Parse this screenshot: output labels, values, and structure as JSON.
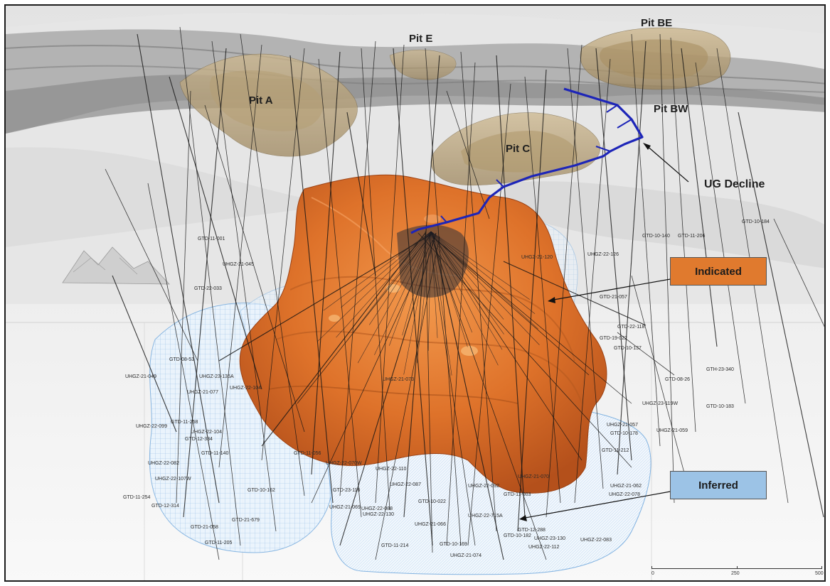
{
  "colors": {
    "indicated": "#e07a2e",
    "inferred": "#9cc3e6",
    "pit": "#b8a27a",
    "decline": "#1d25b8",
    "terrain": "#c9c9c9"
  },
  "pits": [
    "Pit A",
    "Pit E",
    "Pit BE",
    "Pit BW",
    "Pit C"
  ],
  "callouts": {
    "ug_decline": "UG Decline"
  },
  "legend": {
    "indicated": "Indicated",
    "inferred": "Inferred"
  },
  "scale_bar": {
    "labels": [
      "0",
      "250",
      "500"
    ]
  },
  "hole_ids": [
    "GTD-10-184",
    "GTD-10-140",
    "GTD-11-206",
    "UHGZ-22-126",
    "GTD-21-057",
    "GTD-11-001",
    "UHGZ-21-045",
    "GTD-22-033",
    "UHGZ-22-104",
    "GTD-19-022",
    "GTD-10-137",
    "GTD-08-53",
    "UHGZ-21-049",
    "UHGZ-23-135A",
    "UHGZ-21-077",
    "UHGZ-21-073",
    "GTD-08-26",
    "GTH-23-340",
    "GTD-10-183",
    "UHGZ-22-099",
    "GTD-11-258",
    "UHGZ-22-104",
    "GTD-12-334",
    "GTD-11-140",
    "UHGZ-22-082",
    "UHGZ-22-107W",
    "GTD-11-254",
    "GTD-12-314",
    "GTD-10-162",
    "GTD-21-679",
    "GTD-11-205",
    "UHGZ-21-059",
    "UHGZ-21-057",
    "GTD-10-178",
    "GTD-11-212",
    "UHGZ-21-062",
    "UHGZ-22-078",
    "UHGZ-22-088",
    "GTD-11-003",
    "UHGZ-21-070",
    "UHGZ-22-715A",
    "UHGZ-21-066",
    "GTD-12-288",
    "GTD-10-182",
    "UHGZ-23-130",
    "UHGZ-22-112",
    "UHGZ-22-083",
    "GTD-11-214",
    "GTD-10-169",
    "UHGZ-21-074",
    "UHGZ-22-130",
    "GTD-21-058",
    "UHGZ-22-070W",
    "GTD-23-116",
    "UHGZ-22-087",
    "UHGZ-22-092",
    "GTD-22-118",
    "UHGZ-22-110",
    "GTD-10-022",
    "UHGZ-21-069",
    "GTD-11-056",
    "UHGZ-21-120",
    "UHGZ-23-119W"
  ]
}
